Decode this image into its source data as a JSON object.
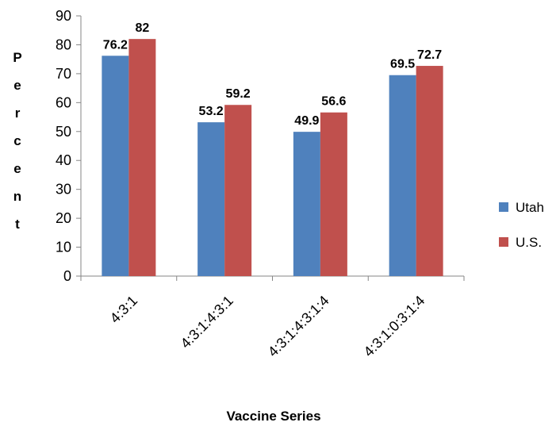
{
  "chart_data": {
    "type": "bar",
    "categories": [
      "4:3:1",
      "4:3:1:4:3:1",
      "4:3:1:4:3:1:4",
      "4:3:1:0:3:1:4"
    ],
    "series": [
      {
        "name": "Utah",
        "values": [
          76.2,
          53.2,
          49.9,
          69.5
        ],
        "color": "#4F81BD",
        "labels": [
          "76.2",
          "53.2",
          "49.9",
          "69.5"
        ]
      },
      {
        "name": "U.S.",
        "values": [
          82,
          59.2,
          56.6,
          72.7
        ],
        "color": "#C0504D",
        "labels": [
          "82",
          "59.2",
          "56.6",
          "72.7"
        ]
      }
    ],
    "xlabel": "Vaccine Series",
    "ylabel": "Percent",
    "ylim": [
      0,
      90
    ],
    "yticks": [
      0,
      10,
      20,
      30,
      40,
      50,
      60,
      70,
      80,
      90
    ],
    "grid": false,
    "legend_position": "right"
  }
}
